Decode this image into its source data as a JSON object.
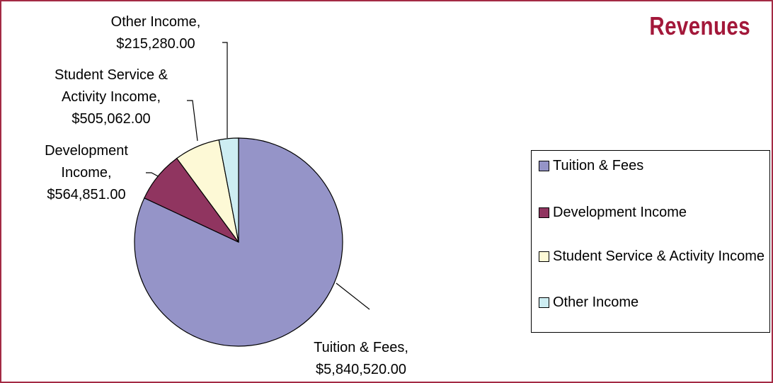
{
  "chart_data": {
    "type": "pie",
    "title": "Revenues",
    "categories": [
      "Tuition & Fees",
      "Development Income",
      "Student Service & Activity Income",
      "Other Income"
    ],
    "values": [
      5840520,
      564851,
      505062,
      215280
    ],
    "value_labels": [
      "Tuition & Fees,\n$5,840,520.00",
      "Development\nIncome,\n$564,851.00",
      "Student Service &\nActivity Income,\n$505,062.00",
      "Other Income,\n$215,280.00"
    ],
    "colors": [
      "#9594c8",
      "#903560",
      "#fdf9d6",
      "#cdedf2"
    ],
    "legend": "right"
  }
}
